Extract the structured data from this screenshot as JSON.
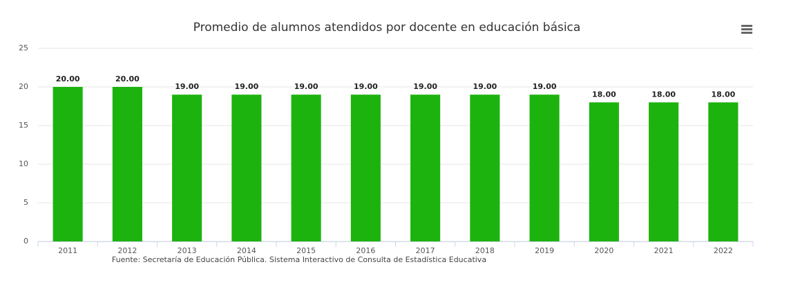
{
  "chart_data": {
    "type": "bar",
    "title": "Promedio de alumnos atendidos por docente en educación básica",
    "source": "Fuente: Secretaría de Educación Pública. Sistema Interactivo de Consulta de Estadística Educativa",
    "categories": [
      "2011",
      "2012",
      "2013",
      "2014",
      "2015",
      "2016",
      "2017",
      "2018",
      "2019",
      "2020",
      "2021",
      "2022"
    ],
    "values": [
      20,
      20,
      19,
      19,
      19,
      19,
      19,
      19,
      19,
      18,
      18,
      18
    ],
    "value_labels": [
      "20.00",
      "20.00",
      "19.00",
      "19.00",
      "19.00",
      "19.00",
      "19.00",
      "19.00",
      "19.00",
      "18.00",
      "18.00",
      "18.00"
    ],
    "color": "#1db30f",
    "ylim": [
      0,
      25
    ],
    "yticks": [
      0,
      5,
      10,
      15,
      20,
      25
    ],
    "grid": true
  }
}
